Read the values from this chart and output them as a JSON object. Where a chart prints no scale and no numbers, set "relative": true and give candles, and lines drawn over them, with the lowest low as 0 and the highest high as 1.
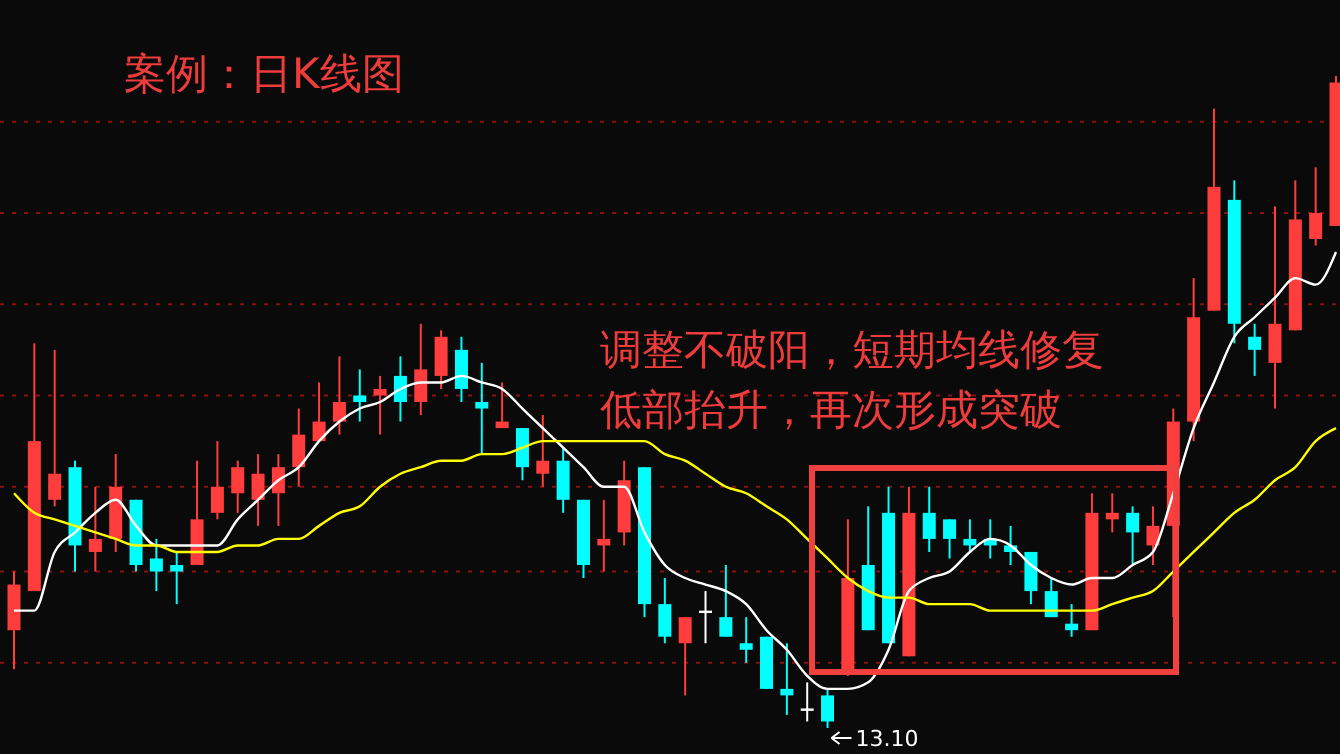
{
  "chart_data": {
    "type": "candlestick",
    "title": "案例：日K线图",
    "relative": true,
    "categories": [
      null,
      null,
      null,
      null,
      null,
      null,
      null,
      null,
      null,
      null,
      null,
      null,
      null,
      null,
      null,
      null,
      null,
      null,
      null,
      null,
      null,
      null,
      null,
      null,
      null,
      null,
      null,
      null,
      null,
      null,
      null,
      null,
      null,
      null,
      null,
      null,
      null,
      null,
      null,
      null,
      null,
      null,
      null,
      null,
      null,
      null,
      null,
      null,
      null,
      null,
      null,
      null,
      null,
      null,
      null,
      null,
      null,
      null,
      null,
      null,
      null,
      null,
      null,
      null,
      null,
      null
    ],
    "ohlc": [
      [
        0.15,
        0.24,
        0.09,
        0.22
      ],
      [
        0.21,
        0.59,
        0.21,
        0.44
      ],
      [
        0.35,
        0.58,
        0.34,
        0.39
      ],
      [
        0.4,
        0.41,
        0.24,
        0.28
      ],
      [
        0.27,
        0.37,
        0.24,
        0.29
      ],
      [
        0.29,
        0.42,
        0.27,
        0.37
      ],
      [
        0.35,
        0.35,
        0.24,
        0.25
      ],
      [
        0.26,
        0.29,
        0.21,
        0.24
      ],
      [
        0.25,
        0.27,
        0.19,
        0.24
      ],
      [
        0.25,
        0.41,
        0.25,
        0.32
      ],
      [
        0.33,
        0.44,
        0.32,
        0.37
      ],
      [
        0.36,
        0.41,
        0.33,
        0.4
      ],
      [
        0.35,
        0.42,
        0.31,
        0.39
      ],
      [
        0.36,
        0.42,
        0.31,
        0.4
      ],
      [
        0.4,
        0.49,
        0.37,
        0.45
      ],
      [
        0.44,
        0.53,
        0.44,
        0.47
      ],
      [
        0.47,
        0.57,
        0.45,
        0.5
      ],
      [
        0.51,
        0.55,
        0.47,
        0.5
      ],
      [
        0.51,
        0.54,
        0.45,
        0.52
      ],
      [
        0.54,
        0.57,
        0.47,
        0.5
      ],
      [
        0.5,
        0.62,
        0.48,
        0.55
      ],
      [
        0.54,
        0.61,
        0.52,
        0.6
      ],
      [
        0.58,
        0.6,
        0.5,
        0.52
      ],
      [
        0.5,
        0.56,
        0.42,
        0.49
      ],
      [
        0.46,
        0.53,
        0.46,
        0.47
      ],
      [
        0.46,
        0.46,
        0.38,
        0.4
      ],
      [
        0.39,
        0.48,
        0.37,
        0.41
      ],
      [
        0.41,
        0.43,
        0.33,
        0.35
      ],
      [
        0.35,
        0.35,
        0.23,
        0.25
      ],
      [
        0.28,
        0.35,
        0.24,
        0.29
      ],
      [
        0.3,
        0.41,
        0.28,
        0.38
      ],
      [
        0.4,
        0.4,
        0.17,
        0.19
      ],
      [
        0.19,
        0.23,
        0.13,
        0.14
      ],
      [
        0.13,
        0.17,
        0.05,
        0.17
      ],
      [
        0.18,
        0.21,
        0.13,
        0.18
      ],
      [
        0.17,
        0.25,
        0.14,
        0.14
      ],
      [
        0.13,
        0.17,
        0.1,
        0.12
      ],
      [
        0.14,
        0.14,
        0.06,
        0.06
      ],
      [
        0.06,
        0.13,
        0.02,
        0.05
      ],
      [
        0.03,
        0.07,
        0.01,
        0.03
      ],
      [
        0.05,
        0.06,
        0,
        0.01
      ],
      [
        0.09,
        0.32,
        0.08,
        0.23
      ],
      [
        0.25,
        0.34,
        0.15,
        0.15
      ],
      [
        0.33,
        0.37,
        0.13,
        0.13
      ],
      [
        0.11,
        0.37,
        0.11,
        0.33
      ],
      [
        0.33,
        0.37,
        0.27,
        0.29
      ],
      [
        0.32,
        0.32,
        0.26,
        0.29
      ],
      [
        0.29,
        0.32,
        0.27,
        0.28
      ],
      [
        0.29,
        0.32,
        0.26,
        0.28
      ],
      [
        0.28,
        0.31,
        0.25,
        0.27
      ],
      [
        0.27,
        0.27,
        0.19,
        0.21
      ],
      [
        0.21,
        0.23,
        0.17,
        0.17
      ],
      [
        0.16,
        0.19,
        0.14,
        0.15
      ],
      [
        0.15,
        0.36,
        0.15,
        0.33
      ],
      [
        0.32,
        0.36,
        0.3,
        0.33
      ],
      [
        0.33,
        0.34,
        0.25,
        0.3
      ],
      [
        0.28,
        0.34,
        0.25,
        0.31
      ],
      [
        0.31,
        0.49,
        0.17,
        0.47
      ],
      [
        0.47,
        0.69,
        0.44,
        0.63
      ],
      [
        0.64,
        0.95,
        0.64,
        0.83
      ],
      [
        0.81,
        0.84,
        0.59,
        0.62
      ],
      [
        0.6,
        0.62,
        0.54,
        0.58
      ],
      [
        0.56,
        0.8,
        0.49,
        0.62
      ],
      [
        0.61,
        0.84,
        0.61,
        0.78
      ],
      [
        0.75,
        0.86,
        0.74,
        0.79
      ],
      [
        0.77,
        1,
        0.77,
        0.99
      ]
    ],
    "series": [
      {
        "type": "line",
        "color": "#ffffff",
        "values": [
          0.18,
          0.18,
          0.27,
          0.3,
          0.33,
          0.35,
          0.31,
          0.28,
          0.28,
          0.28,
          0.28,
          0.32,
          0.35,
          0.38,
          0.4,
          0.44,
          0.47,
          0.49,
          0.5,
          0.52,
          0.53,
          0.53,
          0.54,
          0.53,
          0.52,
          0.49,
          0.46,
          0.43,
          0.4,
          0.37,
          0.37,
          0.3,
          0.25,
          0.23,
          0.22,
          0.21,
          0.19,
          0.15,
          0.12,
          0.08,
          0.06,
          0.06,
          0.07,
          0.12,
          0.21,
          0.23,
          0.24,
          0.27,
          0.29,
          0.28,
          0.25,
          0.23,
          0.22,
          0.23,
          0.23,
          0.25,
          0.27,
          0.36,
          0.46,
          0.53,
          0.6,
          0.63,
          0.66,
          0.69,
          0.68,
          0.73
        ]
      },
      {
        "type": "line",
        "color": "#ffff00",
        "values": [
          0.36,
          0.33,
          0.32,
          0.31,
          0.3,
          0.29,
          0.28,
          0.28,
          0.27,
          0.27,
          0.27,
          0.28,
          0.28,
          0.29,
          0.29,
          0.31,
          0.33,
          0.34,
          0.37,
          0.39,
          0.4,
          0.41,
          0.41,
          0.42,
          0.42,
          0.43,
          0.44,
          0.44,
          0.44,
          0.44,
          0.44,
          0.44,
          0.42,
          0.41,
          0.39,
          0.37,
          0.36,
          0.34,
          0.32,
          0.29,
          0.26,
          0.23,
          0.21,
          0.2,
          0.2,
          0.19,
          0.19,
          0.19,
          0.18,
          0.18,
          0.18,
          0.18,
          0.18,
          0.18,
          0.19,
          0.2,
          0.21,
          0.24,
          0.27,
          0.3,
          0.33,
          0.35,
          0.38,
          0.4,
          0.44,
          0.46
        ]
      }
    ],
    "ref_lines": [
      {
        "axis": "y",
        "value": 0.1,
        "color": "#8b1010",
        "line_style": "dotted"
      },
      {
        "axis": "y",
        "value": 0.24,
        "color": "#8b1010",
        "line_style": "dotted"
      },
      {
        "axis": "y",
        "value": 0.37,
        "color": "#8b1010",
        "line_style": "dotted"
      },
      {
        "axis": "y",
        "value": 0.51,
        "color": "#8b1010",
        "line_style": "dotted"
      },
      {
        "axis": "y",
        "value": 0.65,
        "color": "#8b1010",
        "line_style": "dotted"
      },
      {
        "axis": "y",
        "value": 0.79,
        "color": "#8b1010",
        "line_style": "dotted"
      },
      {
        "axis": "y",
        "value": 0.93,
        "color": "#8b1010",
        "line_style": "dotted"
      }
    ],
    "annotations": [
      "调整不破阳，短期均线修复",
      "低部抬升，再次形成突破",
      "13.10"
    ]
  }
}
